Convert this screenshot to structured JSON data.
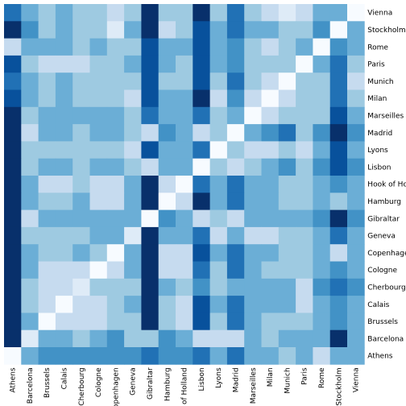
{
  "chart_data": {
    "type": "heatmap",
    "title": "",
    "xlabel": "",
    "ylabel": "",
    "columns": [
      "Athens",
      "Barcelona",
      "Brussels",
      "Calais",
      "Cherbourg",
      "Cologne",
      "Copenhagen",
      "Geneva",
      "Gibraltar",
      "Hamburg",
      "Hook of Holland",
      "Lisbon",
      "Lyons",
      "Madrid",
      "Marseilles",
      "Milan",
      "Munich",
      "Paris",
      "Rome",
      "Stockholm",
      "Vienna"
    ],
    "rows": [
      "Vienna",
      "Stockholm",
      "Rome",
      "Paris",
      "Munich",
      "Milan",
      "Marseilles",
      "Madrid",
      "Lyons",
      "Lisbon",
      "Hook of Holland",
      "Hamburg",
      "Gibraltar",
      "Geneva",
      "Copenhagen",
      "Cologne",
      "Cherbourg",
      "Calais",
      "Brussels",
      "Barcelona",
      "Athens"
    ],
    "row_tick_labels": [
      "Vienna",
      "Stockholm",
      "Rome",
      "Paris",
      "Munich",
      "Milan",
      "Marseilles",
      "Madrid",
      "Lyons",
      "Lisbon",
      "Hook of Holl",
      "Hamburg",
      "Gibraltar",
      "Geneva",
      "Copenhagen",
      "Cologne",
      "Cherbourg",
      "Calais",
      "Brussels",
      "Barcelona",
      "Athens"
    ],
    "col_tick_labels": [
      "Athens",
      "Barcelona",
      "Brussels",
      "Calais",
      "Cherbourg",
      "Cologne",
      "Copenhagen",
      "Geneva",
      "Gibraltar",
      "Hamburg",
      "ok of Holland",
      "Lisbon",
      "Lyons",
      "Madrid",
      "Marseilles",
      "Milan",
      "Munich",
      "Paris",
      "Rome",
      "Stockholm",
      "Vienna"
    ],
    "color_scale": [
      "#f7fbff",
      "#deebf7",
      "#c6dbef",
      "#9ecae1",
      "#6baed6",
      "#4292c6",
      "#2171b5",
      "#08519c",
      "#08306b"
    ],
    "values": [
      [
        6,
        4,
        3,
        4,
        3,
        3,
        2,
        3,
        8,
        3,
        3,
        8,
        3,
        6,
        3,
        2,
        1,
        2,
        4,
        4,
        0
      ],
      [
        8,
        5,
        3,
        4,
        3,
        3,
        1,
        4,
        8,
        2,
        3,
        7,
        4,
        6,
        4,
        4,
        3,
        3,
        5,
        0,
        4
      ],
      [
        2,
        4,
        4,
        4,
        3,
        4,
        3,
        3,
        7,
        4,
        4,
        7,
        4,
        5,
        3,
        2,
        3,
        4,
        0,
        5,
        4
      ],
      [
        7,
        3,
        2,
        2,
        2,
        3,
        3,
        4,
        7,
        4,
        3,
        7,
        4,
        5,
        3,
        3,
        3,
        0,
        4,
        6,
        3
      ],
      [
        6,
        4,
        3,
        4,
        3,
        3,
        3,
        3,
        7,
        3,
        3,
        7,
        3,
        6,
        3,
        2,
        0,
        3,
        3,
        6,
        2
      ],
      [
        7,
        4,
        3,
        4,
        3,
        3,
        3,
        2,
        7,
        4,
        4,
        8,
        2,
        5,
        2,
        0,
        2,
        3,
        3,
        6,
        3
      ],
      [
        8,
        3,
        4,
        4,
        4,
        4,
        4,
        3,
        6,
        4,
        4,
        6,
        3,
        4,
        0,
        2,
        3,
        3,
        3,
        7,
        4
      ],
      [
        8,
        2,
        4,
        4,
        3,
        4,
        4,
        3,
        2,
        5,
        4,
        2,
        3,
        0,
        4,
        5,
        6,
        3,
        5,
        8,
        5
      ],
      [
        8,
        3,
        3,
        3,
        3,
        3,
        3,
        2,
        7,
        4,
        4,
        6,
        0,
        3,
        2,
        2,
        3,
        2,
        4,
        7,
        4
      ],
      [
        8,
        3,
        4,
        4,
        3,
        4,
        4,
        3,
        2,
        4,
        4,
        0,
        3,
        2,
        3,
        4,
        5,
        3,
        5,
        7,
        5
      ],
      [
        8,
        4,
        2,
        2,
        3,
        2,
        2,
        4,
        8,
        2,
        0,
        6,
        4,
        6,
        4,
        4,
        3,
        3,
        4,
        5,
        4
      ],
      [
        8,
        4,
        3,
        3,
        4,
        2,
        2,
        4,
        8,
        0,
        2,
        8,
        4,
        6,
        4,
        4,
        3,
        3,
        4,
        3,
        4
      ],
      [
        8,
        2,
        4,
        4,
        4,
        4,
        4,
        4,
        0,
        5,
        4,
        2,
        3,
        2,
        4,
        4,
        4,
        4,
        5,
        8,
        5
      ],
      [
        8,
        3,
        3,
        3,
        3,
        4,
        4,
        1,
        8,
        4,
        4,
        6,
        2,
        4,
        2,
        2,
        3,
        3,
        4,
        6,
        4
      ],
      [
        8,
        4,
        3,
        3,
        4,
        3,
        0,
        4,
        8,
        2,
        2,
        7,
        4,
        6,
        4,
        4,
        3,
        3,
        4,
        2,
        4
      ],
      [
        8,
        4,
        2,
        2,
        2,
        0,
        2,
        4,
        8,
        2,
        2,
        6,
        3,
        6,
        4,
        3,
        3,
        3,
        4,
        5,
        4
      ],
      [
        8,
        3,
        2,
        2,
        1,
        3,
        3,
        3,
        8,
        4,
        3,
        5,
        3,
        4,
        4,
        4,
        4,
        2,
        5,
        6,
        5
      ],
      [
        8,
        3,
        2,
        0,
        2,
        2,
        3,
        4,
        8,
        3,
        2,
        7,
        4,
        6,
        4,
        4,
        4,
        2,
        4,
        5,
        4
      ],
      [
        8,
        4,
        0,
        2,
        2,
        2,
        3,
        3,
        8,
        3,
        2,
        7,
        3,
        6,
        4,
        3,
        3,
        3,
        4,
        5,
        4
      ],
      [
        8,
        1,
        4,
        4,
        3,
        4,
        5,
        3,
        3,
        5,
        4,
        2,
        2,
        2,
        4,
        3,
        4,
        4,
        4,
        8,
        4
      ],
      [
        0,
        4,
        5,
        5,
        5,
        5,
        5,
        5,
        6,
        5,
        5,
        6,
        4,
        6,
        4,
        4,
        3,
        4,
        2,
        4,
        4
      ]
    ]
  }
}
